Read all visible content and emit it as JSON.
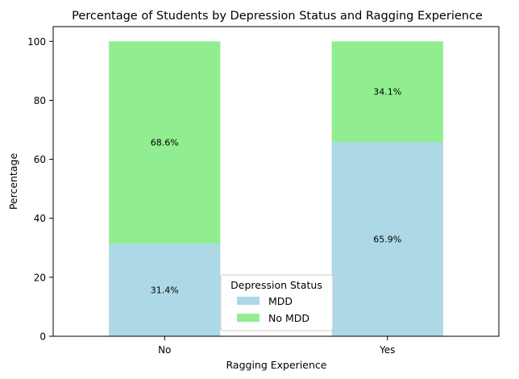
{
  "chart_data": {
    "type": "bar",
    "stacked": true,
    "title": "Percentage of Students by Depression Status and Ragging Experience",
    "xlabel": "Ragging Experience",
    "ylabel": "Percentage",
    "categories": [
      "No",
      "Yes"
    ],
    "ylim": [
      0,
      105
    ],
    "yticks": [
      0,
      20,
      40,
      60,
      80,
      100
    ],
    "series": [
      {
        "name": "MDD",
        "values": [
          31.4,
          65.9
        ],
        "labels": [
          "31.4%",
          "65.9%"
        ],
        "color": "#add8e6"
      },
      {
        "name": "No MDD",
        "values": [
          68.6,
          34.1
        ],
        "labels": [
          "68.6%",
          "34.1%"
        ],
        "color": "#90ee90"
      }
    ],
    "legend": {
      "title": "Depression Status",
      "placement": "lower center"
    },
    "grid": false
  }
}
